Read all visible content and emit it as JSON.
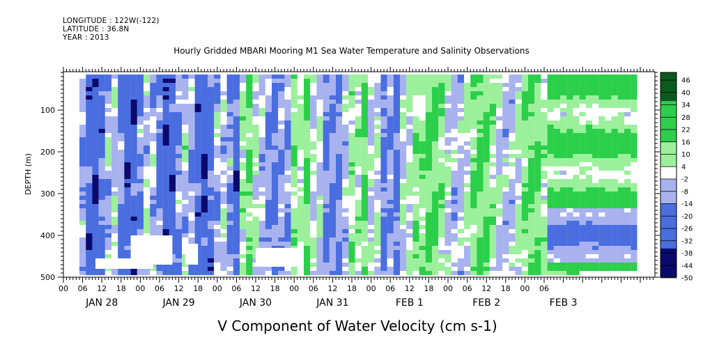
{
  "header": {
    "line1": "LONGITUDE : 122W(-122)",
    "line2": "LATITUDE : 36.8N",
    "line3": "YEAR : 2013"
  },
  "chart_data": {
    "type": "heatmap",
    "title": "Hourly Gridded MBARI Mooring M1 Sea Water Temperature and Salinity Observations",
    "xlabel": "V Component of Water Velocity (cm s-1)",
    "ylabel": "DEPTH (m)",
    "ylim": [
      500,
      10
    ],
    "y_ticks": [
      100,
      200,
      300,
      400,
      500
    ],
    "x_hour_ticks": [
      "00",
      "06",
      "12",
      "18",
      "00",
      "06",
      "12",
      "18",
      "00",
      "06",
      "12",
      "18",
      "00",
      "06",
      "12",
      "18",
      "00",
      "06",
      "12",
      "18",
      "00",
      "06",
      "12",
      "18",
      "00",
      "06"
    ],
    "day_labels": [
      "JAN 28",
      "JAN 29",
      "JAN 30",
      "JAN 31",
      "FEB  1",
      "FEB  2",
      "FEB  3"
    ],
    "colorbar_labels": [
      "46",
      "40",
      "34",
      "28",
      "22",
      "16",
      "10",
      "4",
      "-2",
      "-8",
      "-14",
      "-20",
      "-26",
      "-32",
      "-38",
      "-44",
      "-50"
    ],
    "colorbar_range": [
      -50,
      50
    ],
    "colors": {
      "strong_negative": "#0a0a6e",
      "negative": "#4a6ee0",
      "weak_negative": "#a8b2ee",
      "near_zero": "#ffffff",
      "weak_positive": "#9cf09c",
      "positive": "#2ccf4a",
      "strong_positive": "#0c5a1e"
    },
    "pattern_notes": "JAN 28 to JAN 30 mostly negative (blue) with green streaks; JAN 31 to FEB 1 mixed positive green and blue; FEB 2 to FEB 3 smooth horizontal green bands with blue tongue near 350-450 m"
  }
}
